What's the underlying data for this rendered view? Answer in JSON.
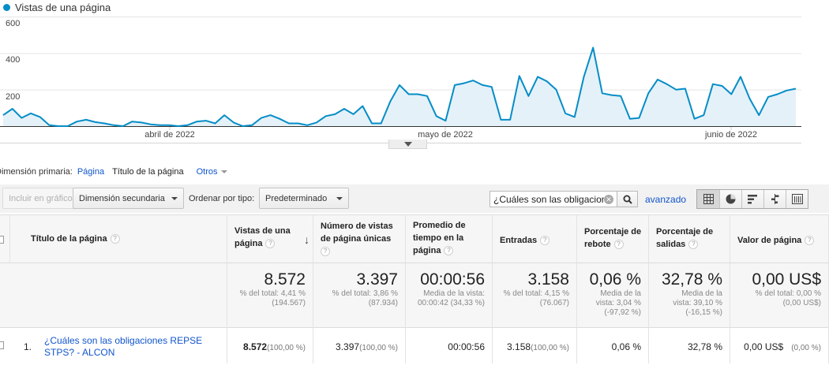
{
  "chart": {
    "legend_label": "Vistas de una página",
    "y_ticks": [
      "600",
      "400",
      "200"
    ],
    "x_ticks": [
      "abril de 2022",
      "mayo de 2022",
      "junio de 2022"
    ],
    "series_color": "#058dc7"
  },
  "chart_data": {
    "type": "area",
    "xlabel": "",
    "ylabel": "",
    "ylim": [
      0,
      600
    ],
    "grid": true,
    "series": [
      {
        "name": "Vistas de una página",
        "values": [
          60,
          95,
          45,
          70,
          50,
          5,
          0,
          0,
          25,
          35,
          22,
          15,
          5,
          0,
          25,
          20,
          10,
          5,
          5,
          0,
          5,
          25,
          30,
          15,
          60,
          20,
          0,
          5,
          45,
          60,
          40,
          15,
          15,
          5,
          20,
          55,
          65,
          95,
          65,
          110,
          15,
          15,
          135,
          225,
          175,
          175,
          165,
          55,
          30,
          225,
          235,
          250,
          225,
          215,
          35,
          35,
          275,
          165,
          270,
          245,
          200,
          70,
          50,
          270,
          430,
          180,
          170,
          165,
          40,
          45,
          180,
          255,
          230,
          200,
          205,
          40,
          60,
          230,
          220,
          175,
          270,
          150,
          60,
          160,
          175,
          195,
          205
        ]
      }
    ]
  },
  "dimension": {
    "label": "Dimensión primaria:",
    "options": [
      "Página",
      "Título de la página"
    ],
    "active": "Título de la página",
    "other": "Otros"
  },
  "toolbar": {
    "plot_label": "Incluir en gráfico",
    "secondary_dimension": "Dimensión secundaria",
    "sort_label": "Ordenar por tipo:",
    "sort_value": "Predeterminado",
    "search_value": "¿Cuáles son las obligacion",
    "advanced_label": "avanzado"
  },
  "table": {
    "columns": [
      {
        "label": "Título de la página"
      },
      {
        "label": "Vistas de una página"
      },
      {
        "label": "Número de vistas de página únicas"
      },
      {
        "label": "Promedio de tiempo en la página"
      },
      {
        "label": "Entradas"
      },
      {
        "label": "Porcentaje de rebote"
      },
      {
        "label": "Porcentaje de salidas"
      },
      {
        "label": "Valor de página"
      }
    ],
    "totals": [
      {
        "value": "8.572",
        "sub": "% del total: 4,41 %\n(194.567)"
      },
      {
        "value": "3.397",
        "sub": "% del total: 3,86 %\n(87.934)"
      },
      {
        "value": "00:00:56",
        "sub": "Media de la vista:\n00:00:42 (34,33 %)"
      },
      {
        "value": "3.158",
        "sub": "% del total: 4,15 %\n(76.067)"
      },
      {
        "value": "0,06 %",
        "sub": "Media de la\nvista: 3,04 %\n(-97,92 %)"
      },
      {
        "value": "32,78 %",
        "sub": "Media de la\nvista: 39,10 %\n(-16,15 %)"
      },
      {
        "value": "0,00 US$",
        "sub": "% del total: 0,00 %\n(0,00 US$)"
      }
    ],
    "rows": [
      {
        "index": "1.",
        "title": "¿Cuáles son las obligaciones REPSE STPS? - ALCON",
        "pageviews": "8.572",
        "pageviews_pct": "(100,00 %)",
        "unique": "3.397",
        "unique_pct": "(100,00 %)",
        "avg_time": "00:00:56",
        "entrances": "3.158",
        "entrances_pct": "(100,00 %)",
        "bounce": "0,06 %",
        "exit": "32,78 %",
        "value": "0,00 US$",
        "value_pct": "(0,00 %)"
      }
    ]
  }
}
